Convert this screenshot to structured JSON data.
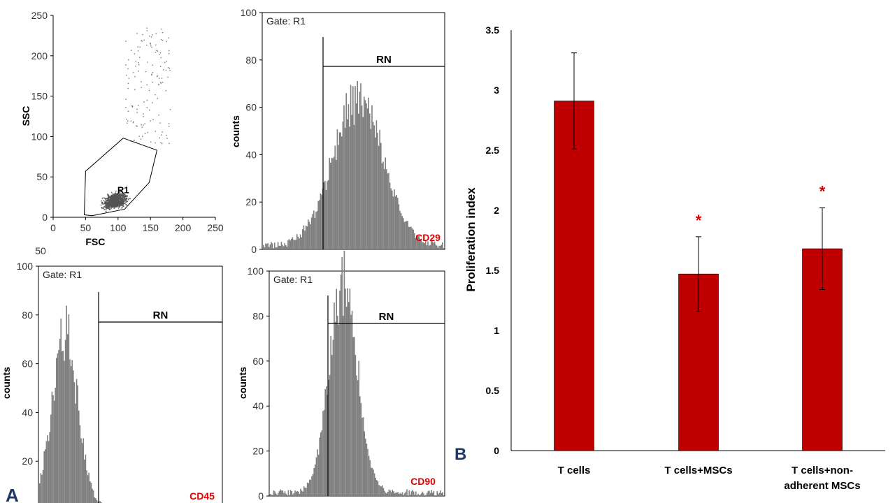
{
  "panel_labels": {
    "a": "A",
    "b": "B"
  },
  "colors": {
    "bar": "#c00000",
    "histogram": "#7f7f7f",
    "marker_label": "#e00000",
    "panel_label": "#1f3864",
    "asterisk": "#e00000"
  },
  "chart_data": [
    {
      "type": "scatter",
      "panel": "A",
      "xlabel": "FSC",
      "ylabel": "SSC",
      "xlim": [
        0,
        250
      ],
      "ylim": [
        0,
        250
      ],
      "x_ticks": [
        "0",
        "50",
        "100",
        "150",
        "200",
        "250"
      ],
      "y_ticks": [
        "0",
        "50",
        "100",
        "150",
        "200",
        "250"
      ],
      "gate_label": "R1",
      "gate_polygon": [
        [
          48,
          3
        ],
        [
          50,
          57
        ],
        [
          108,
          98
        ],
        [
          160,
          83
        ],
        [
          148,
          43
        ],
        [
          110,
          10
        ],
        [
          60,
          2
        ]
      ],
      "clipped_tick_text": "50"
    },
    {
      "type": "histogram",
      "panel": "A",
      "marker": "CD29",
      "gate": "Gate: R1",
      "region": "RN",
      "ylabel": "counts",
      "ylim": [
        0,
        100
      ],
      "y_ticks": [
        "0",
        "20",
        "40",
        "60",
        "80",
        "100"
      ],
      "peak_count": 66
    },
    {
      "type": "histogram",
      "panel": "A",
      "marker": "CD45",
      "gate": "Gate: R1",
      "region": "RN",
      "ylabel": "counts",
      "ylim": [
        0,
        100
      ],
      "y_ticks": [
        "20",
        "40",
        "60",
        "80",
        "100"
      ],
      "peak_count": 77
    },
    {
      "type": "histogram",
      "panel": "A",
      "marker": "CD90",
      "gate": "Gate: R1",
      "region": "RN",
      "ylabel": "counts",
      "ylim": [
        0,
        100
      ],
      "y_ticks": [
        "0",
        "20",
        "40",
        "60",
        "80",
        "100"
      ],
      "peak_count": 100
    },
    {
      "type": "bar",
      "panel": "B",
      "title": "",
      "xlabel": "",
      "ylabel": "Proliferation index",
      "ylim": [
        0,
        3.5
      ],
      "y_ticks": [
        "0",
        "0.5",
        "1",
        "1.5",
        "2",
        "2.5",
        "3",
        "3.5"
      ],
      "categories": [
        "T cells",
        "T cells+MSCs",
        "T cells+non-adherent MSCs"
      ],
      "category_lines": [
        [
          "T cells"
        ],
        [
          "T cells+MSCs"
        ],
        [
          "T cells+non-",
          "adherent MSCs"
        ]
      ],
      "values": [
        2.91,
        1.47,
        1.68
      ],
      "errors": [
        0.4,
        0.31,
        0.34
      ],
      "significance": [
        "",
        "*",
        "*"
      ]
    }
  ]
}
